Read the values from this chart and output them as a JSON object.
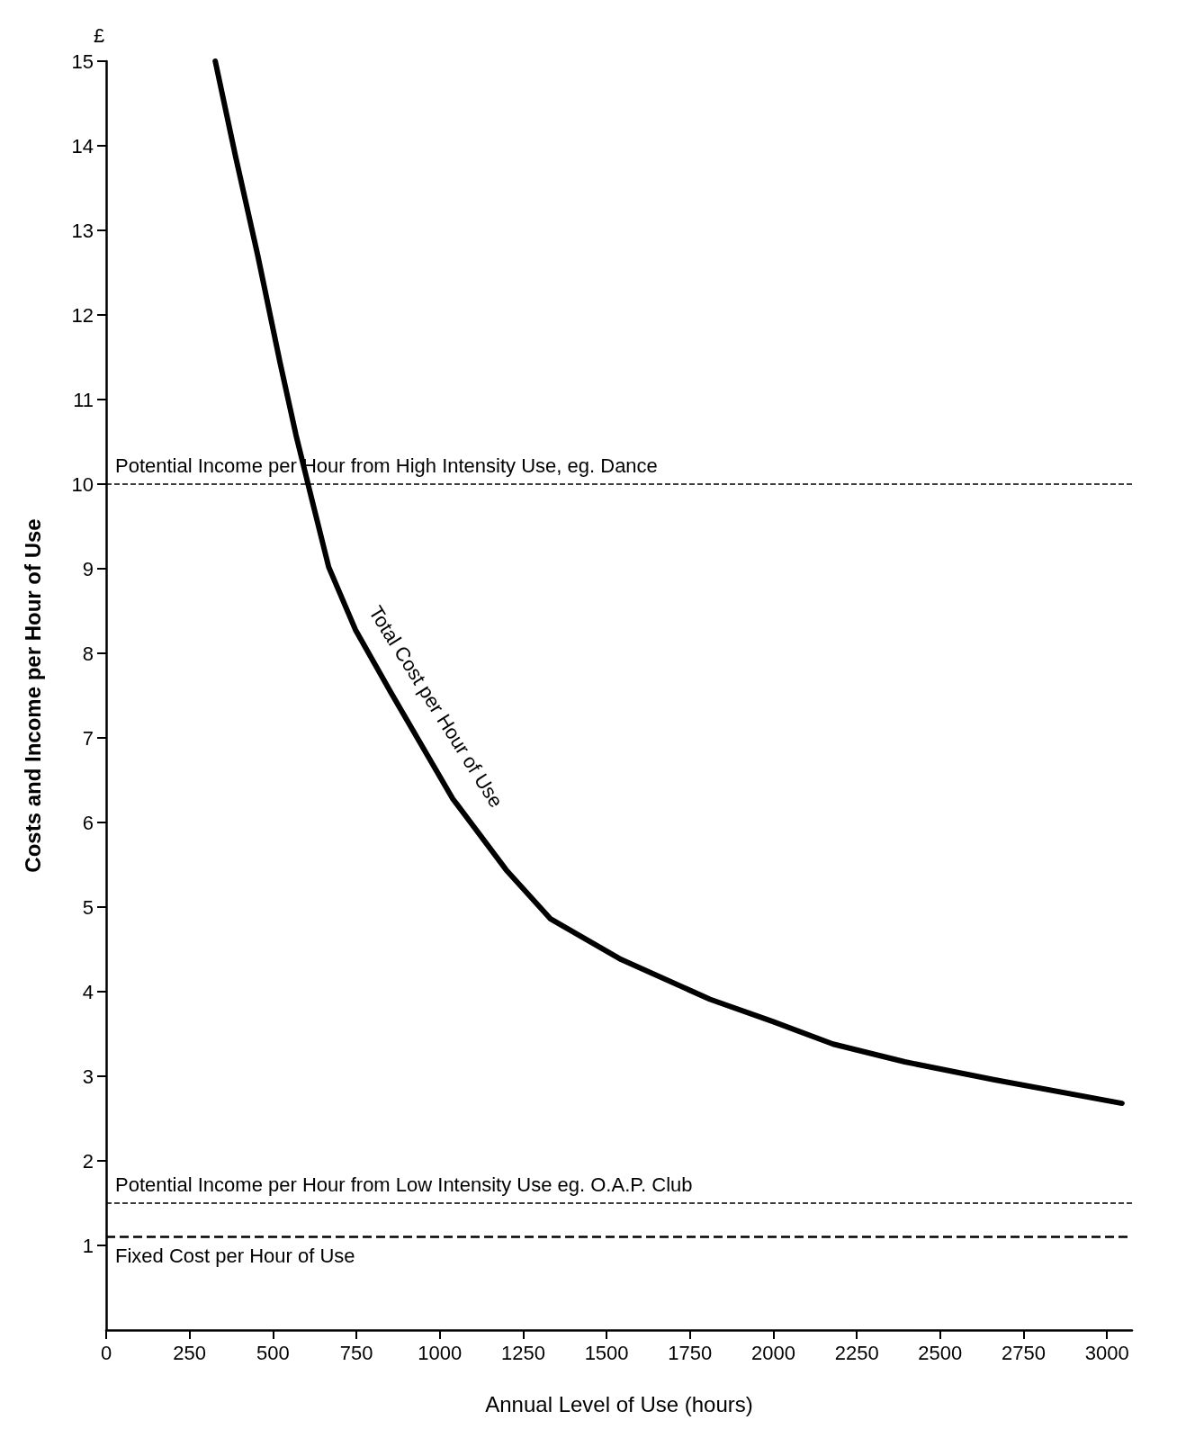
{
  "chart_data": {
    "type": "line",
    "xlabel": "Annual Level of Use (hours)",
    "ylabel": "Costs and Income per Hour of Use",
    "annotations": [
      "£"
    ],
    "x": [
      327,
      388,
      454,
      521,
      569,
      614,
      667,
      747,
      853,
      1039,
      1199,
      1332,
      1544,
      1810,
      1996,
      2179,
      2394,
      2660,
      3045
    ],
    "series": [
      {
        "name": "Total Cost per Hour of Use",
        "color": "#000000",
        "values": [
          15.0,
          13.87,
          12.71,
          11.44,
          10.58,
          9.86,
          9.02,
          8.28,
          7.54,
          6.28,
          5.44,
          4.86,
          4.38,
          3.91,
          3.65,
          3.38,
          3.17,
          2.96,
          2.68
        ]
      }
    ],
    "xlim": [
      0,
      3075
    ],
    "xticks": [
      0,
      250,
      500,
      750,
      1000,
      1250,
      1500,
      1750,
      2000,
      2250,
      2500,
      2750,
      3000
    ],
    "ylim": [
      0,
      15
    ],
    "yticks": [
      1,
      2,
      3,
      4,
      5,
      6,
      7,
      8,
      9,
      10,
      11,
      12,
      13,
      14,
      15
    ],
    "ref_lines": [
      {
        "axis": "y",
        "value": 10,
        "label": "Potential Income per Hour from High Intensity Use, eg. Dance",
        "line_style": "dashed"
      },
      {
        "axis": "y",
        "value": 1.5,
        "label": "Potential Income per Hour from Low Intensity Use eg. O.A.P. Club",
        "line_style": "dashed"
      },
      {
        "axis": "y",
        "value": 1.1,
        "label": "Fixed Cost per Hour of Use",
        "line_style": "dashed"
      }
    ],
    "grid": false,
    "legend": false,
    "marker": "none",
    "line_style": "solid"
  }
}
